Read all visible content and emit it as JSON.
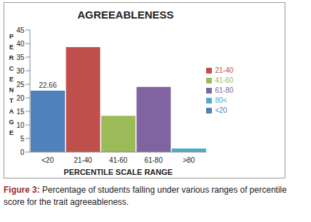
{
  "chart_data": {
    "type": "bar",
    "title": "AGREEABLENESS",
    "y_label": "PERCENTAGE",
    "x_label": "PERCENTILE SCALE RANGE",
    "categories": [
      "<20",
      "21-40",
      "41-60",
      "61-80",
      ">80"
    ],
    "series": [
      {
        "name": "<20",
        "color": "#4f81bd",
        "values": [
          22.66,
          null,
          null,
          null,
          null
        ]
      },
      {
        "name": "21-40",
        "color": "#c0504d",
        "values": [
          null,
          38.66,
          null,
          null,
          null
        ]
      },
      {
        "name": "41-60",
        "color": "#9bbb59",
        "values": [
          null,
          null,
          13.33,
          null,
          null
        ]
      },
      {
        "name": "61-80",
        "color": "#8064a2",
        "values": [
          null,
          null,
          null,
          24,
          null
        ]
      },
      {
        "name": "80<",
        "color": "#4bacc6",
        "values": [
          null,
          null,
          null,
          null,
          1.33
        ]
      }
    ],
    "stacked": true,
    "ylim": [
      0,
      45
    ],
    "yticks": [
      0,
      5,
      10,
      15,
      20,
      25,
      30,
      35,
      40,
      45
    ],
    "grid": false,
    "legend": "right",
    "data_labels": true
  },
  "caption": {
    "label": "Figure 3:",
    "text": "Percentage of students falling under various ranges of percentile score for the trait agreeableness."
  }
}
